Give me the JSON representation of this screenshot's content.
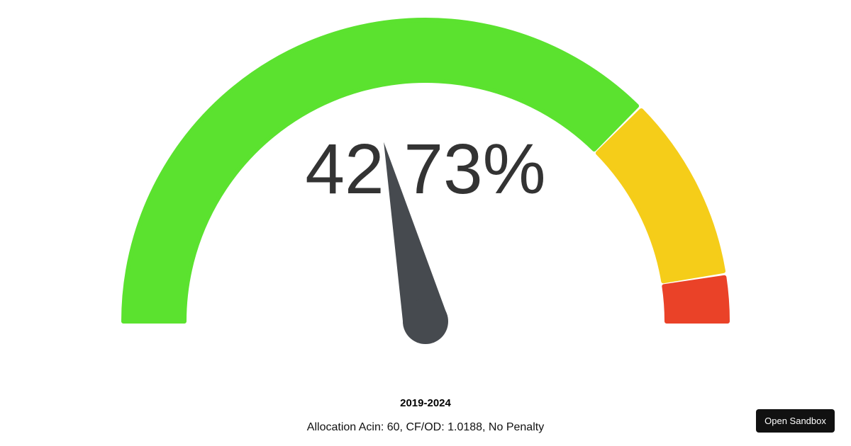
{
  "chart_data": {
    "type": "gauge",
    "value": 42.73,
    "value_label": "42.73%",
    "min": 0,
    "max": 100,
    "segments": [
      {
        "from": 0,
        "to": 75,
        "color": "#5be22f"
      },
      {
        "from": 75,
        "to": 95,
        "color": "#f5cd19"
      },
      {
        "from": 95,
        "to": 100,
        "color": "#ea4228"
      }
    ],
    "needle_color": "#464a4f",
    "value_text_color": "#333333"
  },
  "caption": {
    "title": "2019-2024",
    "subtitle": "Allocation Acin: 60, CF/OD: 1.0188, No Penalty"
  },
  "sandbox": {
    "label": "Open Sandbox"
  }
}
